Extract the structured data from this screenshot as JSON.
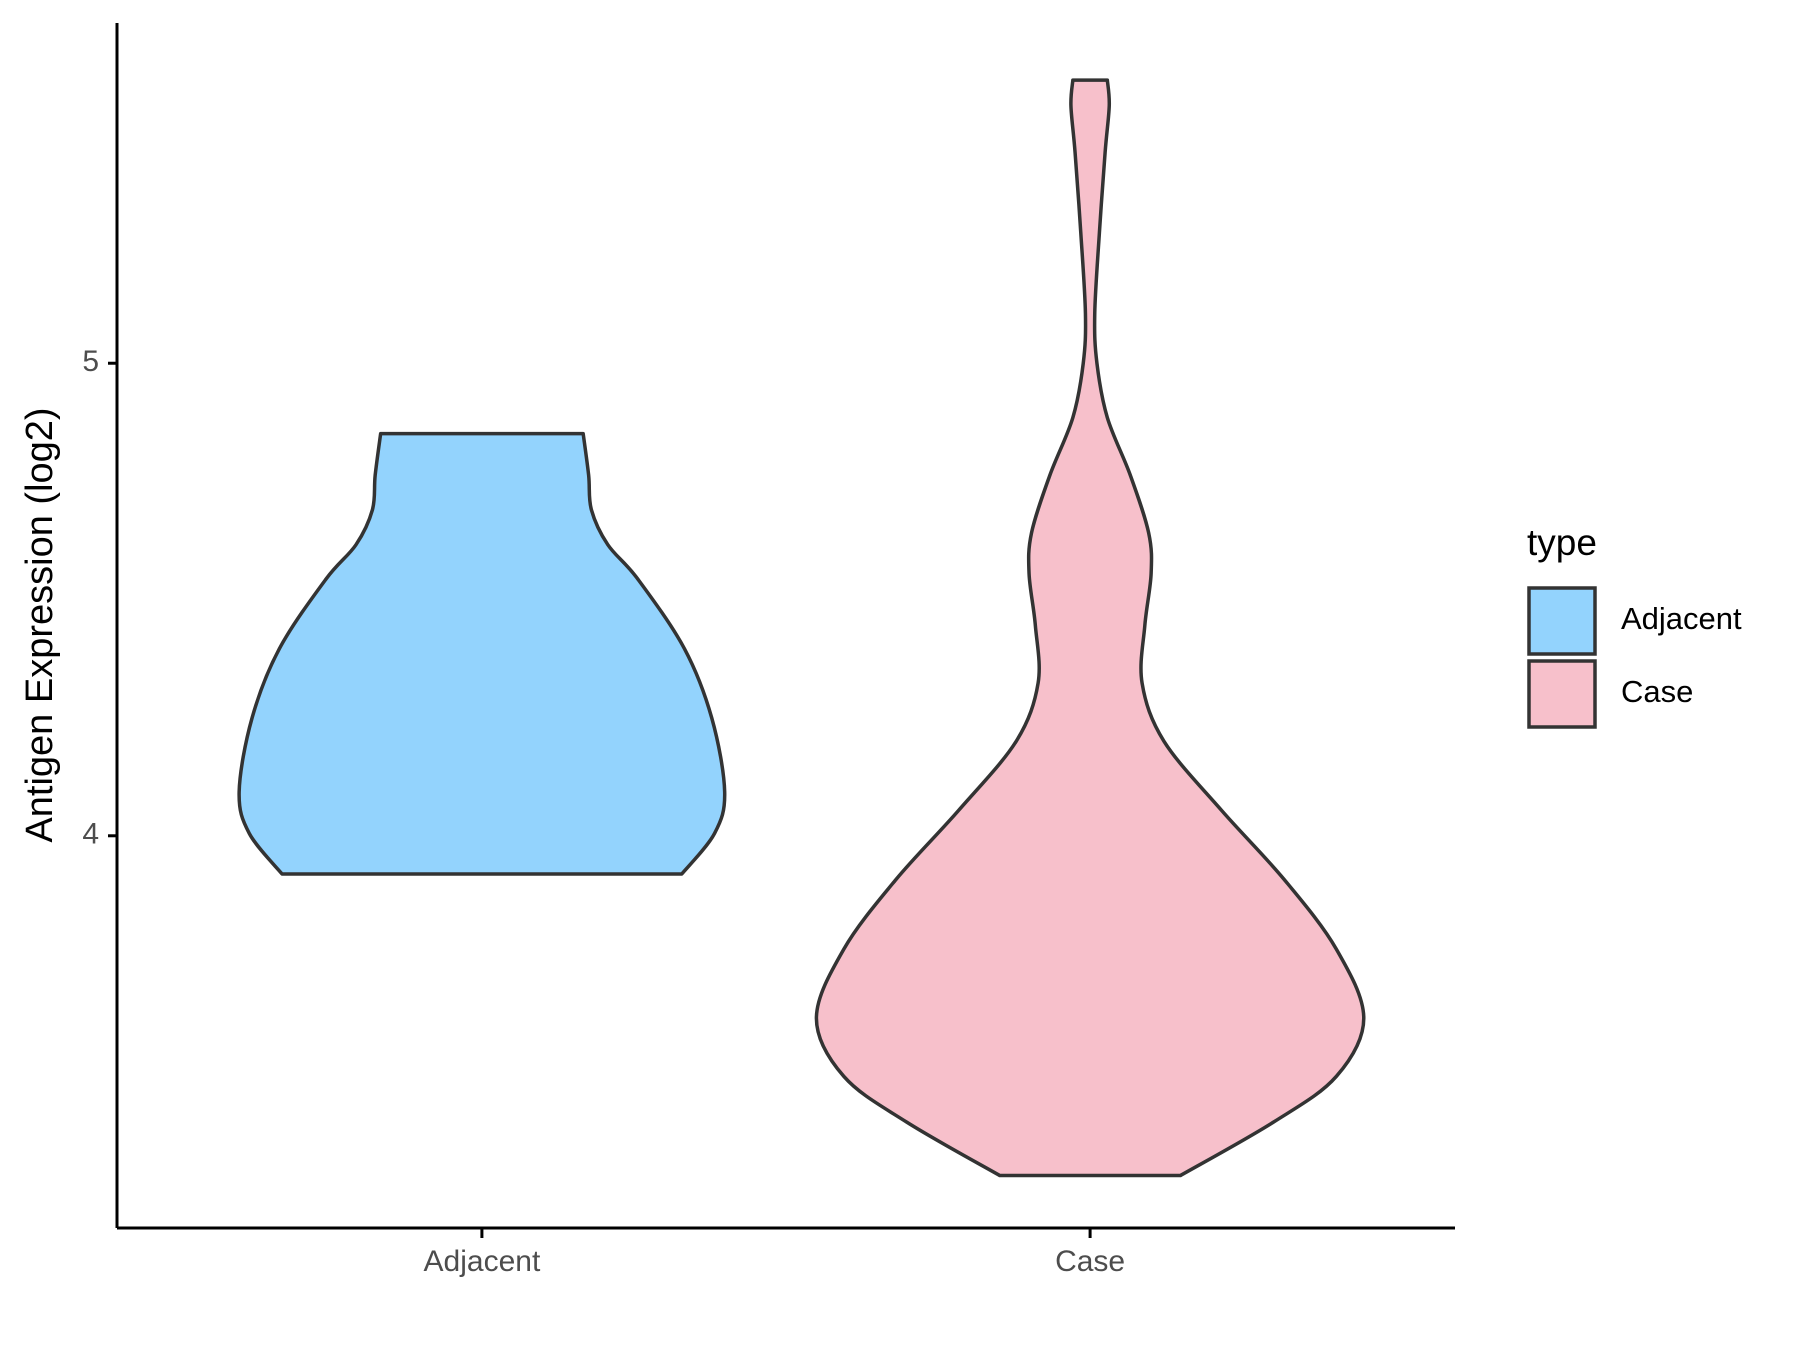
{
  "chart_data": {
    "type": "violin",
    "y_label": "Antigen Expression (log2)",
    "categories": [
      "Adjacent",
      "Case"
    ],
    "ylim": [
      3.17,
      5.72
    ],
    "yticks": [
      4,
      5
    ],
    "legend_title": "type",
    "legend_position": "right",
    "series": [
      {
        "name": "Adjacent",
        "color": "#93d3fd",
        "y": [
          3.919,
          4.005,
          4.093,
          4.249,
          4.396,
          4.543,
          4.616,
          4.69,
          4.763,
          4.851
        ],
        "width": [
          0.73,
          0.85,
          0.887,
          0.84,
          0.74,
          0.57,
          0.46,
          0.4,
          0.39,
          0.37
        ]
      },
      {
        "name": "Case",
        "color": "#f7c0cb",
        "y": [
          3.281,
          3.394,
          3.491,
          3.614,
          3.76,
          3.907,
          4.054,
          4.2,
          4.323,
          4.445,
          4.555,
          4.641,
          4.763,
          4.885,
          5.0,
          5.105,
          5.276,
          5.447,
          5.545,
          5.599
        ],
        "width": [
          0.33,
          0.67,
          0.9,
          1.0,
          0.9,
          0.71,
          0.48,
          0.27,
          0.19,
          0.2,
          0.223,
          0.214,
          0.147,
          0.063,
          0.025,
          0.017,
          0.034,
          0.055,
          0.07,
          0.063
        ]
      }
    ]
  }
}
